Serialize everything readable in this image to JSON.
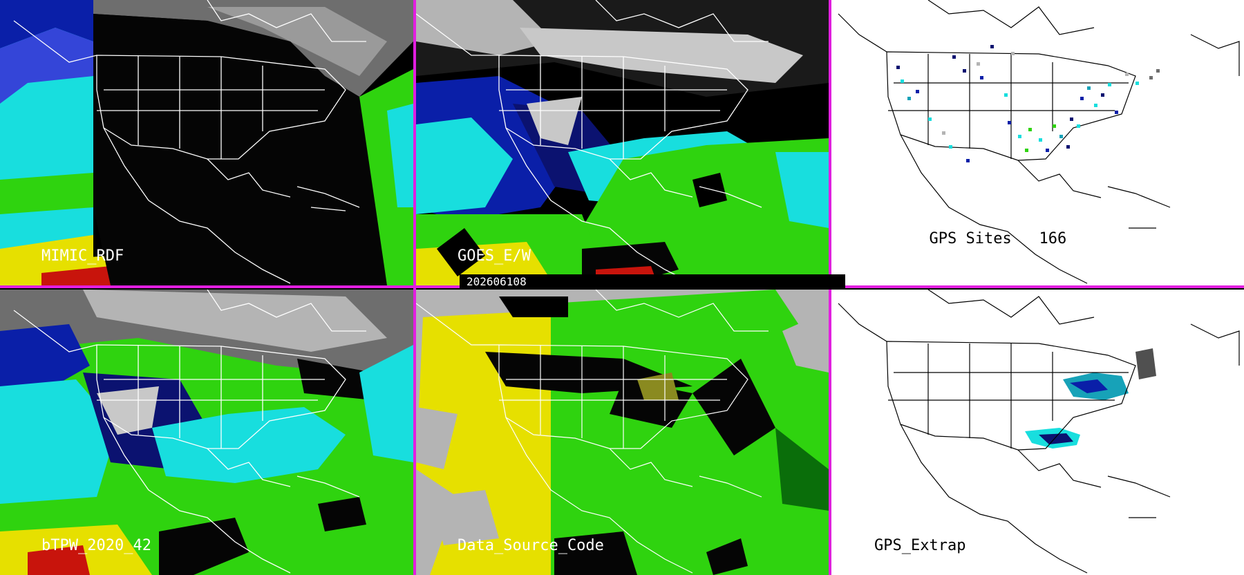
{
  "timestamp": "202606108",
  "panels": [
    {
      "label": "MIMIC_RDF",
      "theme": "mimic"
    },
    {
      "label": "GOES_E/W",
      "theme": "goes"
    },
    {
      "label": "GPS Sites",
      "count": "166",
      "theme": "gps"
    },
    {
      "label": "bTPW_2020_42",
      "theme": "btpw"
    },
    {
      "label": "Data_Source_Code",
      "theme": "dsc"
    },
    {
      "label": "GPS_Extrap",
      "theme": "extrap"
    }
  ],
  "colors": {
    "divider": "#e21ee0",
    "ocean_blue": "#0a1fa8",
    "cyan": "#18dede",
    "green": "#2fd30f",
    "yellow": "#e6e000",
    "red": "#c8140c",
    "grey": "#b4b4b4",
    "navy": "#0b1270"
  }
}
